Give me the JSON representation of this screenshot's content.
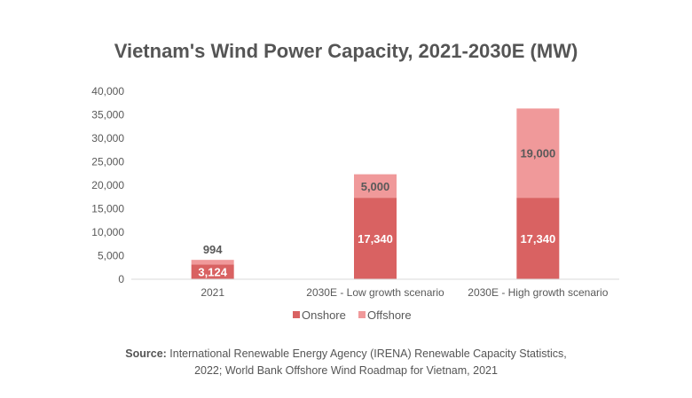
{
  "chart_data": {
    "type": "bar",
    "stacked": true,
    "title": "Vietnam's Wind Power Capacity, 2021-2030E (MW)",
    "categories": [
      "2021",
      "2030E - Low growth scenario",
      "2030E - High growth scenario"
    ],
    "series": [
      {
        "name": "Onshore",
        "values": [
          3124,
          17340,
          17340
        ],
        "color": "#D96262",
        "labels": [
          "3,124",
          "17,340",
          "17,340"
        ]
      },
      {
        "name": "Offshore",
        "values": [
          994,
          5000,
          19000
        ],
        "color": "#F0999A",
        "labels": [
          "994",
          "5,000",
          "19,000"
        ]
      }
    ],
    "ylim": [
      0,
      40000
    ],
    "yticks": [
      "0",
      "5,000",
      "10,000",
      "15,000",
      "20,000",
      "25,000",
      "30,000",
      "35,000",
      "40,000"
    ],
    "grid": false,
    "legend": "bottom"
  },
  "source": {
    "label": "Source:",
    "text_line1": " International Renewable Energy Agency (IRENA) Renewable Capacity Statistics,",
    "text_line2": "2022; World Bank Offshore Wind Roadmap for Vietnam, 2021"
  }
}
